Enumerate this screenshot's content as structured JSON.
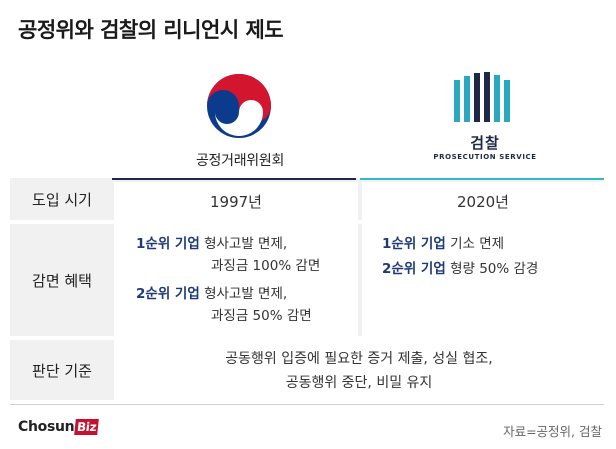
{
  "title": "공정위와 검찰의 리니언시 제도",
  "columns": {
    "ftc": {
      "name": "공정거래위원회"
    },
    "prosecution": {
      "name": "검찰",
      "sub": "PROSECUTION SERVICE"
    }
  },
  "rows": {
    "intro": {
      "header": "도입 시기",
      "ftc": "1997년",
      "prosecution": "2020년"
    },
    "benefit": {
      "header": "감면 혜택",
      "ftc": [
        {
          "tag": "1순위 기업",
          "line1": "형사고발 면제,",
          "line2": "과징금 100% 감면"
        },
        {
          "tag": "2순위 기업",
          "line1": "형사고발 면제,",
          "line2": "과징금 50% 감면"
        }
      ],
      "prosecution": [
        {
          "tag": "1순위 기업",
          "line1": "기소 면제"
        },
        {
          "tag": "2순위 기업",
          "line1": "형량 50% 감경"
        }
      ]
    },
    "criteria": {
      "header": "판단 기준",
      "line1": "공동행위 입증에 필요한 증거 제출, 성실 협조,",
      "line2": "공동행위 중단, 비밀 유지"
    }
  },
  "footer": {
    "brand": "Chosun",
    "brand_suffix": "Biz",
    "source": "자료=공정위, 검찰"
  },
  "colors": {
    "navy": "#1e2a45",
    "teal": "#36b7c7",
    "red": "#c8102e",
    "blue_logo": "#0b3b8c"
  }
}
